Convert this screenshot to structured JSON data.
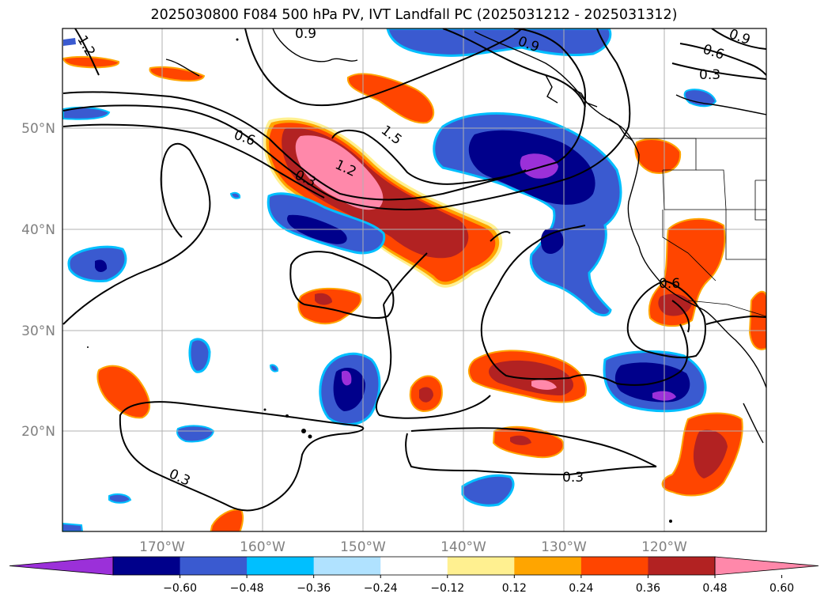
{
  "title": "2025030800 F084 500 hPa PV, IVT Landfall PC (2025031212 - 2025031312)",
  "axes": {
    "lon_labels": [
      "170°W",
      "160°W",
      "150°W",
      "140°W",
      "130°W",
      "120°W"
    ],
    "lat_labels": [
      "50°N",
      "40°N",
      "30°N",
      "20°N"
    ]
  },
  "colorbar": {
    "ticks": [
      "−0.60",
      "−0.48",
      "−0.36",
      "−0.24",
      "−0.12",
      "0.12",
      "0.24",
      "0.36",
      "0.48",
      "0.60"
    ],
    "colors": [
      "#9b30d9",
      "#00008b",
      "#3a5ad0",
      "#00bfff",
      "#b0e2ff",
      "#ffffff",
      "#fff090",
      "#ffa500",
      "#ff4500",
      "#b22222",
      "#ff88aa"
    ]
  },
  "contour_labels": [
    "1.2",
    "0.9",
    "0.9",
    "0.9",
    "0.6",
    "0.3",
    "0.6",
    "1.5",
    "1.2",
    "0.3",
    "0.6",
    "0.3",
    "0.3"
  ]
}
